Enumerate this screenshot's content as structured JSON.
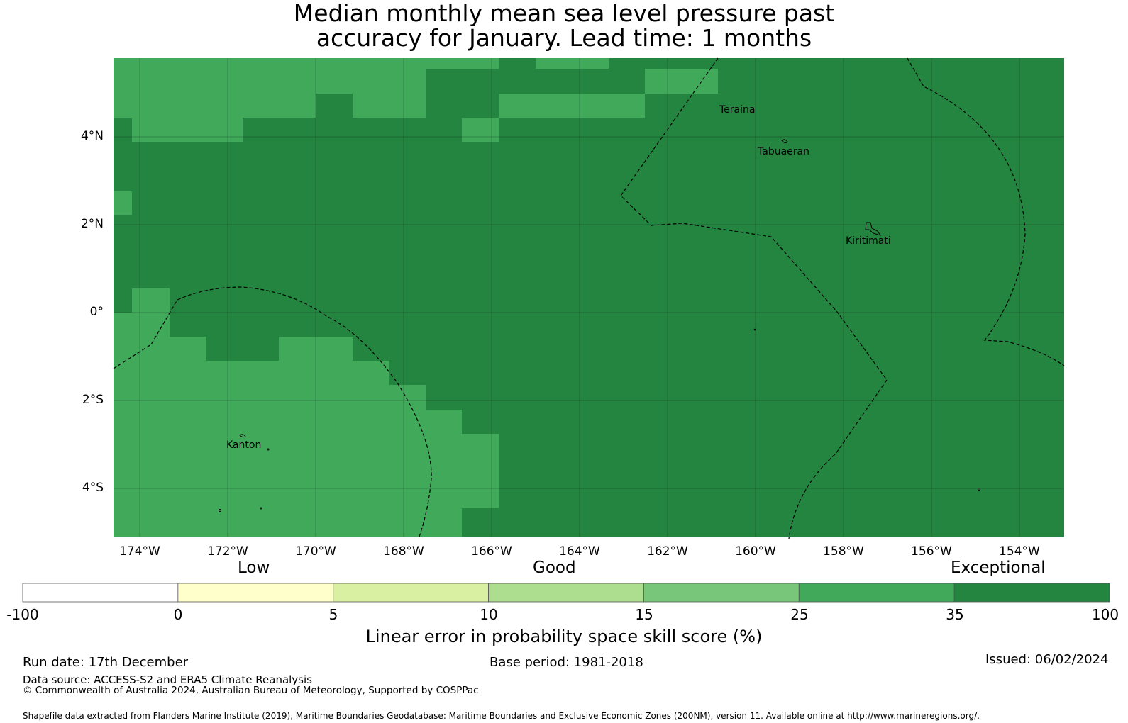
{
  "title": {
    "line1": "Median monthly mean sea level pressure past",
    "line2": "accuracy for January. Lead time: 1 months"
  },
  "map": {
    "lat_labels": [
      "4°N",
      "2°N",
      "0°",
      "2°S",
      "4°S"
    ],
    "lon_labels": [
      "174°W",
      "172°W",
      "170°W",
      "168°W",
      "166°W",
      "164°W",
      "162°W",
      "160°W",
      "158°W",
      "156°W",
      "154°W"
    ],
    "places": [
      "Teraina",
      "Tabuaeran",
      "Kiritimati",
      "Kanton"
    ],
    "colors": {
      "exceptional": "#23853f",
      "very_high": "#40a95a",
      "boundary": "#000000"
    }
  },
  "colorbar": {
    "categories": [
      "Low",
      "Good",
      "Exceptional"
    ],
    "ticks": [
      "-100",
      "0",
      "5",
      "10",
      "15",
      "25",
      "35",
      "100"
    ],
    "colors": [
      "#ffffff",
      "#ffffcc",
      "#d9f0a3",
      "#addd8e",
      "#78c679",
      "#40a95a",
      "#23853f"
    ],
    "label": "Linear error in probability space skill score (%)"
  },
  "footer": {
    "run_date": "Run date: 17th December",
    "base_period": "Base period: 1981-2018",
    "issued": "Issued: 06/02/2024",
    "data_source": "Data source: ACCESS-S2 and ERA5 Climate Reanalysis",
    "copyright": "© Commonwealth of Australia 2024, Australian Bureau of Meteorology, Supported by COSPPac",
    "shapefile": "Shapefile data extracted from Flanders Marine Institute (2019), Maritime Boundaries Geodatabase: Maritime Boundaries and Exclusive Economic Zones (200NM), version 11. Available online at http://www.marineregions.org/."
  }
}
